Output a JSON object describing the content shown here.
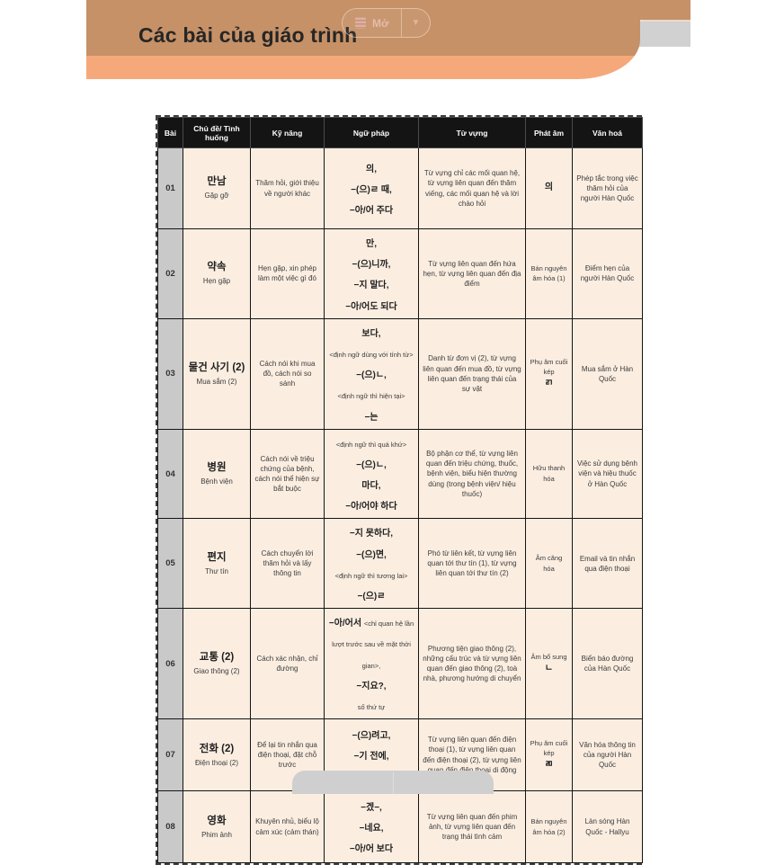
{
  "header": {
    "title": "Các bài của giáo trình",
    "open_button": {
      "label": "Mở"
    }
  },
  "table": {
    "columns": [
      "Bài",
      "Chủ đề/ Tình huống",
      "Kỹ năng",
      "Ngữ pháp",
      "Từ vựng",
      "Phát âm",
      "Văn hoá"
    ],
    "rows": [
      {
        "bai": "01",
        "topic_ko": "만남",
        "topic_vi": "Gặp gỡ",
        "skill": "Thăm hỏi, giới thiệu về người khác",
        "grammar": [
          [
            {
              "t": "의,",
              "k": "ko"
            }
          ],
          [
            {
              "t": "−(으)ㄹ 때,",
              "k": "ko"
            }
          ],
          [
            {
              "t": "−아/어 주다",
              "k": "ko"
            }
          ]
        ],
        "vocab": "Từ vựng chỉ các mối quan hệ, từ vựng liên quan đến thăm viếng, các mối quan hệ và lời chào hỏi",
        "pron": [
          [
            {
              "t": "의",
              "k": "ko"
            }
          ]
        ],
        "culture": "Phép tắc trong việc thăm hỏi của người Hàn Quốc"
      },
      {
        "bai": "02",
        "topic_ko": "약속",
        "topic_vi": "Hẹn gặp",
        "skill": "Hẹn gặp, xin phép làm một việc gì đó",
        "grammar": [
          [
            {
              "t": "만,",
              "k": "ko"
            }
          ],
          [
            {
              "t": "−(으)니까,",
              "k": "ko"
            }
          ],
          [
            {
              "t": "−지 말다,",
              "k": "ko"
            }
          ],
          [
            {
              "t": "−아/어도 되다",
              "k": "ko"
            }
          ]
        ],
        "vocab": "Từ vựng liên quan đến hứa hẹn, từ vựng liên quan đến địa điểm",
        "pron": [
          [
            {
              "t": "Bán nguyên âm hóa (1)",
              "k": "vi"
            }
          ]
        ],
        "culture": "Điểm hẹn của người Hàn Quốc"
      },
      {
        "bai": "03",
        "topic_ko": "물건 사기 (2)",
        "topic_vi": "Mua sắm (2)",
        "skill": "Cách nói khi mua đồ, cách nói so sánh",
        "grammar": [
          [
            {
              "t": "보다,",
              "k": "ko"
            }
          ],
          [
            {
              "t": "<định ngữ dùng với tính từ> ",
              "k": "vi"
            },
            {
              "t": "−(으)ㄴ,",
              "k": "ko"
            }
          ],
          [
            {
              "t": "<định ngữ thì hiện tại>",
              "k": "vi"
            }
          ],
          [
            {
              "t": "−는",
              "k": "ko"
            }
          ]
        ],
        "vocab": "Danh từ đơn vị (2), từ vựng liên quan đến mua đồ, từ vựng liên quan đến trạng thái của sự vật",
        "pron": [
          [
            {
              "t": "Phụ âm cuối kép",
              "k": "vi"
            }
          ],
          [
            {
              "t": "ㄺ",
              "k": "ko"
            }
          ]
        ],
        "culture": "Mua sắm ở Hàn Quốc"
      },
      {
        "bai": "04",
        "topic_ko": "병원",
        "topic_vi": "Bệnh viện",
        "skill": "Cách nói về triệu chứng của bệnh, cách nói thể hiện sự bắt buộc",
        "grammar": [
          [
            {
              "t": "<định ngữ thì quá khứ>",
              "k": "vi"
            }
          ],
          [
            {
              "t": "−(으)ㄴ,",
              "k": "ko"
            }
          ],
          [
            {
              "t": "마다,",
              "k": "ko"
            }
          ],
          [
            {
              "t": "−아/어야 하다",
              "k": "ko"
            }
          ]
        ],
        "vocab": "Bộ phận cơ thể, từ vựng liên quan đến triệu chứng, thuốc, bệnh viện, biểu hiện thường dùng (trong bệnh viện/ hiệu thuốc)",
        "pron": [
          [
            {
              "t": "Hữu thanh hóa",
              "k": "vi"
            }
          ]
        ],
        "culture": "Việc sử dụng bệnh viện và hiệu thuốc ở Hàn Quốc"
      },
      {
        "bai": "05",
        "topic_ko": "편지",
        "topic_vi": "Thư tín",
        "skill": "Cách chuyển lời thăm hỏi và lấy thông tin",
        "grammar": [
          [
            {
              "t": "−지 못하다,",
              "k": "ko"
            }
          ],
          [
            {
              "t": "−(으)면,",
              "k": "ko"
            }
          ],
          [
            {
              "t": "<định ngữ thì tương lai>",
              "k": "vi"
            }
          ],
          [
            {
              "t": "−(으)ㄹ",
              "k": "ko"
            }
          ]
        ],
        "vocab": "Phó từ liên kết, từ vựng liên quan tới thư tín (1), từ vựng liên quan tới thư tín (2)",
        "pron": [
          [
            {
              "t": "Âm căng hóa",
              "k": "vi"
            }
          ]
        ],
        "culture": "Email và tin nhắn qua điện thoại"
      },
      {
        "bai": "06",
        "topic_ko": "교통 (2)",
        "topic_vi": "Giao thông (2)",
        "skill": "Cách xác nhận, chỉ đường",
        "grammar": [
          [
            {
              "t": "−아/어서 ",
              "k": "ko"
            },
            {
              "t": "<chỉ quan hệ lần lượt trước sau về mặt thời gian>,",
              "k": "vi"
            }
          ],
          [
            {
              "t": "−지요?,",
              "k": "ko"
            }
          ],
          [
            {
              "t": "số thứ tự",
              "k": "vi"
            }
          ]
        ],
        "vocab": "Phương tiện giao thông (2), những cấu trúc và từ vựng liên quan đến giao thông (2), toà nhà, phương hướng di chuyển",
        "pron": [
          [
            {
              "t": "Âm bổ sung ",
              "k": "vi"
            },
            {
              "t": "ㄴ",
              "k": "ko"
            }
          ]
        ],
        "culture": "Biển báo đường của Hàn Quốc"
      },
      {
        "bai": "07",
        "topic_ko": "전화 (2)",
        "topic_vi": "Điện thoại (2)",
        "skill": "Để lại tin nhắn qua điện thoại, đặt chỗ trước",
        "grammar": [
          [
            {
              "t": "−(으)려고,",
              "k": "ko"
            }
          ],
          [
            {
              "t": "−기 전에,",
              "k": "ko"
            }
          ],
          [
            {
              "t": "−(으)ㄹ게요",
              "k": "ko"
            }
          ]
        ],
        "vocab": "Từ vựng liên quan đến điện thoại (1), từ vựng liên quan đến điện thoại (2), từ vựng liên quan đến điện thoại di động",
        "pron": [
          [
            {
              "t": "Phụ âm cuối kép",
              "k": "vi"
            }
          ],
          [
            {
              "t": "ㄻ",
              "k": "ko"
            }
          ]
        ],
        "culture": "Văn hóa thông tin của người Hàn Quốc"
      },
      {
        "bai": "08",
        "topic_ko": "영화",
        "topic_vi": "Phim ảnh",
        "skill": "Khuyên nhủ, biểu lộ cảm xúc (cảm thán)",
        "grammar": [
          [
            {
              "t": "−겠−,",
              "k": "ko"
            }
          ],
          [
            {
              "t": "−네요,",
              "k": "ko"
            }
          ],
          [
            {
              "t": "−아/어 보다",
              "k": "ko"
            }
          ]
        ],
        "vocab": "Từ vựng liên quan đến phim ảnh, từ vựng liên quan đến trạng thái tình cảm",
        "pron": [
          [
            {
              "t": "Bán nguyên âm hóa (2)",
              "k": "vi"
            }
          ]
        ],
        "culture": "Làn sóng Hàn Quốc - Hallyu"
      }
    ]
  }
}
